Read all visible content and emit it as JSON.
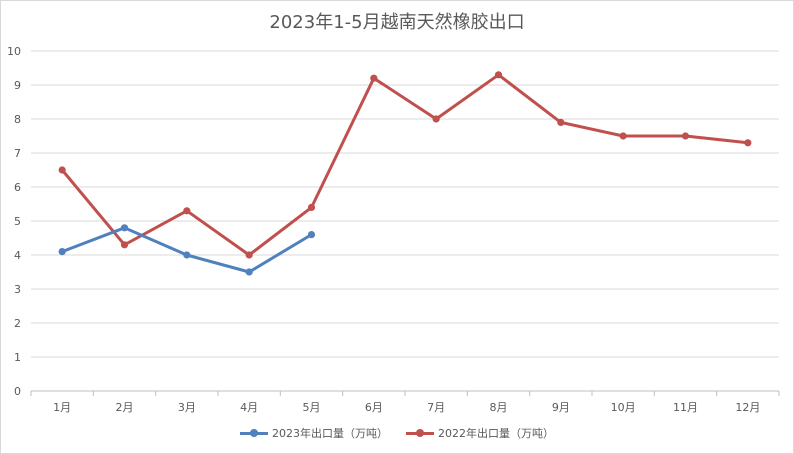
{
  "chart_data": {
    "type": "line",
    "title": "2023年1-5月越南天然橡胶出口",
    "categories": [
      "1月",
      "2月",
      "3月",
      "4月",
      "5月",
      "6月",
      "7月",
      "8月",
      "9月",
      "10月",
      "11月",
      "12月"
    ],
    "ylim": [
      0,
      10
    ],
    "yticks": [
      0,
      1,
      2,
      3,
      4,
      5,
      6,
      7,
      8,
      9,
      10
    ],
    "grid": true,
    "legend_position": "bottom",
    "series": [
      {
        "name": "2023年出口量（万吨）",
        "color": "#4f81bd",
        "values": [
          4.1,
          4.8,
          4.0,
          3.5,
          4.6,
          null,
          null,
          null,
          null,
          null,
          null,
          null
        ]
      },
      {
        "name": "2022年出口量（万吨）",
        "color": "#c0504d",
        "values": [
          6.5,
          4.3,
          5.3,
          4.0,
          5.4,
          9.2,
          8.0,
          9.3,
          7.9,
          7.5,
          7.5,
          7.3
        ]
      }
    ]
  }
}
